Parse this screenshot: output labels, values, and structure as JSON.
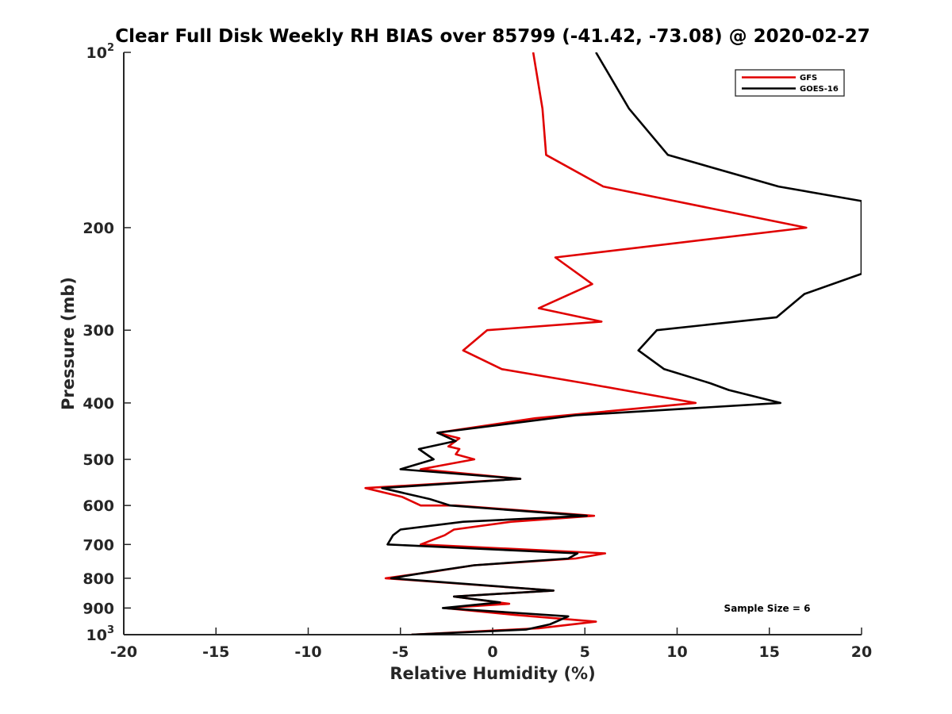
{
  "chart_data": {
    "type": "line",
    "title": "Clear Full Disk Weekly RH BIAS over 85799 (-41.42, -73.08) @ 2020-02-27",
    "xlabel": "Relative Humidity (%)",
    "ylabel": "Pressure (mb)",
    "xlim": [
      -20,
      20
    ],
    "ylim": [
      100,
      1000
    ],
    "y_scale": "log",
    "y_reversed": true,
    "xticks": [
      -20,
      -15,
      -10,
      -5,
      0,
      5,
      10,
      15,
      20
    ],
    "xtick_labels": [
      "-20",
      "-15",
      "-10",
      "-5",
      "0",
      "5",
      "10",
      "15",
      "20"
    ],
    "yticks": [
      {
        "value": 100,
        "base": "10",
        "exp": "2"
      },
      {
        "value": 200,
        "base": "200",
        "exp": ""
      },
      {
        "value": 300,
        "base": "300",
        "exp": ""
      },
      {
        "value": 400,
        "base": "400",
        "exp": ""
      },
      {
        "value": 500,
        "base": "500",
        "exp": ""
      },
      {
        "value": 600,
        "base": "600",
        "exp": ""
      },
      {
        "value": 700,
        "base": "700",
        "exp": ""
      },
      {
        "value": 800,
        "base": "800",
        "exp": ""
      },
      {
        "value": 900,
        "base": "900",
        "exp": ""
      },
      {
        "value": 1000,
        "base": "10",
        "exp": "3"
      }
    ],
    "grid": false,
    "legend_position": "top-right",
    "annotation": "Sample Size = 6",
    "series": [
      {
        "name": "GFS",
        "color": "#e00000",
        "points": [
          {
            "x": 2.2,
            "p": 100
          },
          {
            "x": 2.7,
            "p": 125
          },
          {
            "x": 2.9,
            "p": 150
          },
          {
            "x": 6.0,
            "p": 170
          },
          {
            "x": 17.0,
            "p": 200
          },
          {
            "x": 3.4,
            "p": 225
          },
          {
            "x": 5.4,
            "p": 250
          },
          {
            "x": 2.5,
            "p": 275
          },
          {
            "x": 5.9,
            "p": 290
          },
          {
            "x": -0.3,
            "p": 300
          },
          {
            "x": -1.6,
            "p": 325
          },
          {
            "x": 0.5,
            "p": 350
          },
          {
            "x": 5.0,
            "p": 370
          },
          {
            "x": 11.0,
            "p": 400
          },
          {
            "x": 2.3,
            "p": 425
          },
          {
            "x": -3.0,
            "p": 450
          },
          {
            "x": -1.8,
            "p": 460
          },
          {
            "x": -2.4,
            "p": 475
          },
          {
            "x": -1.8,
            "p": 480
          },
          {
            "x": -2.0,
            "p": 490
          },
          {
            "x": -1.0,
            "p": 500
          },
          {
            "x": -3.9,
            "p": 520
          },
          {
            "x": 1.5,
            "p": 540
          },
          {
            "x": -6.9,
            "p": 560
          },
          {
            "x": -4.9,
            "p": 580
          },
          {
            "x": -3.9,
            "p": 600
          },
          {
            "x": -2.0,
            "p": 600
          },
          {
            "x": 5.5,
            "p": 625
          },
          {
            "x": 1.0,
            "p": 640
          },
          {
            "x": -2.1,
            "p": 660
          },
          {
            "x": -2.6,
            "p": 675
          },
          {
            "x": -3.9,
            "p": 700
          },
          {
            "x": 6.1,
            "p": 725
          },
          {
            "x": 4.5,
            "p": 740
          },
          {
            "x": -1.0,
            "p": 760
          },
          {
            "x": -3.3,
            "p": 780
          },
          {
            "x": -5.8,
            "p": 800
          },
          {
            "x": 3.3,
            "p": 840
          },
          {
            "x": -2.1,
            "p": 860
          },
          {
            "x": 0.9,
            "p": 885
          },
          {
            "x": -2.6,
            "p": 900
          },
          {
            "x": 1.2,
            "p": 925
          },
          {
            "x": 5.6,
            "p": 950
          },
          {
            "x": 2.5,
            "p": 975
          },
          {
            "x": -4.4,
            "p": 1000
          }
        ]
      },
      {
        "name": "GOES-16",
        "color": "#000000",
        "points": [
          {
            "x": 5.6,
            "p": 100
          },
          {
            "x": 7.4,
            "p": 125
          },
          {
            "x": 9.5,
            "p": 150
          },
          {
            "x": 15.5,
            "p": 170
          },
          {
            "x": 20.0,
            "p": 180
          },
          {
            "x": 20.0,
            "p": 240
          },
          {
            "x": 16.9,
            "p": 260
          },
          {
            "x": 15.4,
            "p": 285
          },
          {
            "x": 8.9,
            "p": 300
          },
          {
            "x": 7.9,
            "p": 325
          },
          {
            "x": 9.3,
            "p": 350
          },
          {
            "x": 11.8,
            "p": 370
          },
          {
            "x": 12.8,
            "p": 380
          },
          {
            "x": 15.6,
            "p": 400
          },
          {
            "x": 4.5,
            "p": 420
          },
          {
            "x": -3.0,
            "p": 450
          },
          {
            "x": -2.0,
            "p": 465
          },
          {
            "x": -4.0,
            "p": 480
          },
          {
            "x": -3.2,
            "p": 500
          },
          {
            "x": -5.0,
            "p": 520
          },
          {
            "x": 1.5,
            "p": 540
          },
          {
            "x": -6.0,
            "p": 560
          },
          {
            "x": -3.4,
            "p": 585
          },
          {
            "x": -2.3,
            "p": 600
          },
          {
            "x": 5.1,
            "p": 625
          },
          {
            "x": -1.6,
            "p": 640
          },
          {
            "x": -5.0,
            "p": 660
          },
          {
            "x": -5.4,
            "p": 675
          },
          {
            "x": -5.7,
            "p": 700
          },
          {
            "x": 4.6,
            "p": 725
          },
          {
            "x": 4.1,
            "p": 740
          },
          {
            "x": -1.0,
            "p": 760
          },
          {
            "x": -3.4,
            "p": 780
          },
          {
            "x": -5.5,
            "p": 800
          },
          {
            "x": 3.3,
            "p": 840
          },
          {
            "x": -2.1,
            "p": 860
          },
          {
            "x": 0.4,
            "p": 880
          },
          {
            "x": -2.7,
            "p": 900
          },
          {
            "x": 4.1,
            "p": 930
          },
          {
            "x": 3.1,
            "p": 960
          },
          {
            "x": 1.8,
            "p": 980
          },
          {
            "x": -4.4,
            "p": 1000
          }
        ]
      }
    ]
  }
}
